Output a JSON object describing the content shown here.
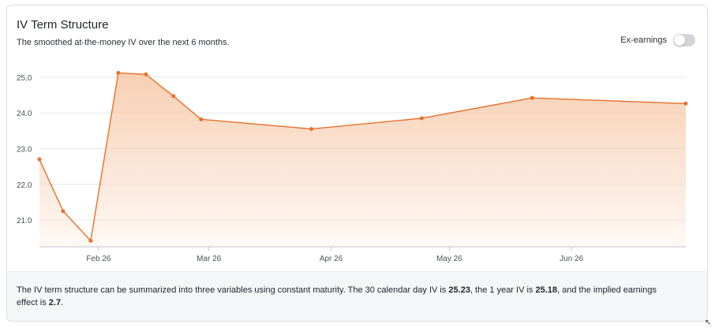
{
  "card": {
    "title": "IV Term Structure",
    "subtitle": "The smoothed at-the-money IV over the next 6 months.",
    "toggle": {
      "label": "Ex-earnings",
      "on": false
    }
  },
  "colors": {
    "line": "#e8702a",
    "fill": "#f6c7a6",
    "grid": "#e6e8ec"
  },
  "chart_data": {
    "type": "area",
    "title": "",
    "xlabel": "",
    "ylabel": "",
    "y_ticks": [
      "21.0",
      "22.0",
      "23.0",
      "24.0",
      "25.0"
    ],
    "ylim": [
      20.25,
      25.55
    ],
    "xlim": [
      "2026-01-17",
      "2026-06-30"
    ],
    "x_ticks": [
      {
        "label": "Feb 26",
        "date": "2026-02-01"
      },
      {
        "label": "Mar 26",
        "date": "2026-03-01"
      },
      {
        "label": "Apr 26",
        "date": "2026-04-01"
      },
      {
        "label": "May 26",
        "date": "2026-05-01"
      },
      {
        "label": "Jun 26",
        "date": "2026-06-01"
      }
    ],
    "grid": true,
    "series": [
      {
        "points": [
          {
            "x": "2026-01-17",
            "y": 22.7
          },
          {
            "x": "2026-01-23",
            "y": 21.25
          },
          {
            "x": "2026-01-30",
            "y": 20.42
          },
          {
            "x": "2026-02-06",
            "y": 25.12
          },
          {
            "x": "2026-02-13",
            "y": 25.08
          },
          {
            "x": "2026-02-20",
            "y": 24.47
          },
          {
            "x": "2026-02-27",
            "y": 23.82
          },
          {
            "x": "2026-03-27",
            "y": 23.55
          },
          {
            "x": "2026-04-24",
            "y": 23.85
          },
          {
            "x": "2026-05-22",
            "y": 24.42
          },
          {
            "x": "2026-06-30",
            "y": 24.26
          }
        ]
      }
    ]
  },
  "footer": {
    "text_1": "The IV term structure can be summarized into three variables using constant maturity. The 30 calendar day IV is ",
    "iv30": "25.23",
    "text_2": ", the 1 year IV is ",
    "iv1y": "25.18",
    "text_3": ", and the implied earnings effect is ",
    "earnings_effect": "2.7",
    "text_4": "."
  }
}
